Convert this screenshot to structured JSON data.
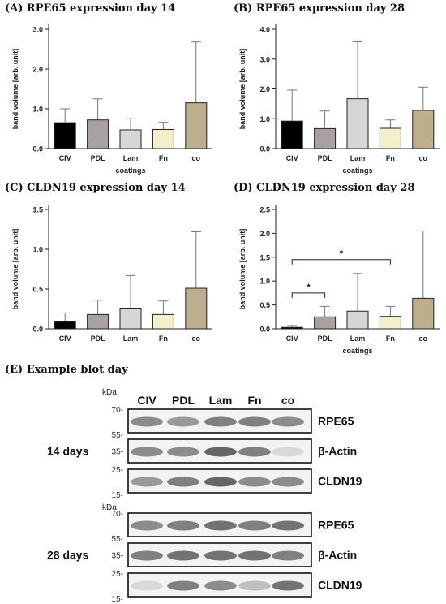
{
  "panels": [
    {
      "id": "A",
      "title": "(A) RPE65 expression day 14"
    },
    {
      "id": "B",
      "title": "(B) RPE65 expression day 28"
    },
    {
      "id": "C",
      "title": "(C) CLDN19 expression day 14"
    },
    {
      "id": "D",
      "title": "(D) CLDN19 expression day 28"
    }
  ],
  "chart_data": [
    {
      "type": "bar",
      "title": "(A) RPE65 expression day 14",
      "categories": [
        "CIV",
        "PDL",
        "Lam",
        "Fn",
        "co"
      ],
      "values": [
        0.65,
        0.72,
        0.47,
        0.48,
        1.15
      ],
      "errors": [
        1.0,
        1.25,
        0.75,
        0.66,
        2.68
      ],
      "ylabel": "band volume [arb. unit]",
      "xlabel": "coatings",
      "ylim": [
        0,
        3.0
      ],
      "yticks": [
        "0.0",
        "1.0",
        "2.0",
        "3.0"
      ],
      "colors": [
        "#000000",
        "#a9a1a1",
        "#d6d6d6",
        "#f3efcb",
        "#bfae8e"
      ]
    },
    {
      "type": "bar",
      "title": "(B) RPE65 expression day 28",
      "categories": [
        "CIV",
        "PDL",
        "Lam",
        "Fn",
        "co"
      ],
      "values": [
        0.92,
        0.67,
        1.67,
        0.68,
        1.28
      ],
      "errors": [
        1.96,
        1.26,
        3.58,
        0.96,
        2.06
      ],
      "ylabel": "band volume [arb. unit]",
      "xlabel": "coatings",
      "ylim": [
        0,
        4.0
      ],
      "yticks": [
        "0.0",
        "1.0",
        "2.0",
        "3.0",
        "4.0"
      ],
      "colors": [
        "#000000",
        "#a9a1a1",
        "#d6d6d6",
        "#f3efcb",
        "#bfae8e"
      ]
    },
    {
      "type": "bar",
      "title": "(C) CLDN19 expression day 14",
      "categories": [
        "CIV",
        "PDL",
        "Lam",
        "Fn",
        "co"
      ],
      "values": [
        0.09,
        0.18,
        0.25,
        0.18,
        0.51
      ],
      "errors": [
        0.2,
        0.36,
        0.67,
        0.35,
        1.22
      ],
      "ylabel": "band volume [arb. unit]",
      "xlabel": "coatings",
      "ylim": [
        0,
        1.5
      ],
      "yticks": [
        "0.0",
        "0.5",
        "1.0",
        "1.5"
      ],
      "colors": [
        "#000000",
        "#a9a1a1",
        "#d6d6d6",
        "#f3efcb",
        "#bfae8e"
      ]
    },
    {
      "type": "bar",
      "title": "(D) CLDN19 expression day 28",
      "categories": [
        "CIV",
        "PDL",
        "Lam",
        "Fn",
        "co"
      ],
      "values": [
        0.03,
        0.25,
        0.37,
        0.26,
        0.64
      ],
      "errors": [
        0.07,
        0.47,
        1.16,
        0.47,
        2.05
      ],
      "ylabel": "band volume [arb. unit]",
      "xlabel": "coatings",
      "ylim": [
        0,
        2.5
      ],
      "yticks": [
        "0.0",
        "0.5",
        "1.0",
        "1.5",
        "2.0",
        "2.5"
      ],
      "colors": [
        "#000000",
        "#a9a1a1",
        "#d6d6d6",
        "#f3efcb",
        "#bfae8e"
      ],
      "significance": [
        {
          "from": "CIV",
          "to": "PDL",
          "label": "*",
          "y": 0.75
        },
        {
          "from": "CIV",
          "to": "Fn",
          "label": "*",
          "y": 1.45
        }
      ]
    }
  ],
  "blot": {
    "title": "(E) Example blot day",
    "lanes": [
      "CIV",
      "PDL",
      "Lam",
      "Fn",
      "co"
    ],
    "kda_label": "kDa",
    "groups": [
      {
        "label": "14 days",
        "rows": [
          {
            "name": "RPE65",
            "markers": [
              "70-",
              "55-"
            ],
            "intensity": [
              0.55,
              0.6,
              0.5,
              0.5,
              0.55
            ]
          },
          {
            "name": "β-Actin",
            "markers": [
              "35-"
            ],
            "intensity": [
              0.55,
              0.55,
              0.4,
              0.5,
              0.85
            ]
          },
          {
            "name": "CLDN19",
            "markers": [
              "25-",
              "15-"
            ],
            "intensity": [
              0.6,
              0.5,
              0.4,
              0.55,
              0.55
            ]
          }
        ]
      },
      {
        "label": "28 days",
        "rows": [
          {
            "name": "RPE65",
            "markers": [
              "70-",
              "55-"
            ],
            "intensity": [
              0.55,
              0.5,
              0.45,
              0.5,
              0.45
            ]
          },
          {
            "name": "β-Actin",
            "markers": [
              "35-"
            ],
            "intensity": [
              0.5,
              0.45,
              0.45,
              0.45,
              0.5
            ]
          },
          {
            "name": "CLDN19",
            "markers": [
              "25-",
              "15-"
            ],
            "intensity": [
              0.85,
              0.5,
              0.55,
              0.75,
              0.45
            ]
          }
        ]
      }
    ]
  }
}
